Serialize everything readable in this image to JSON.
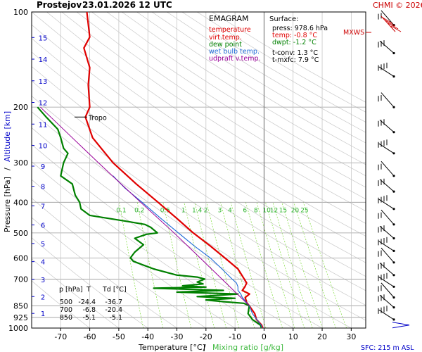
{
  "header": {
    "station": "Prostejov",
    "datetime": "23.01.2026 12 UTC",
    "credit": "CHMI © 2026"
  },
  "legend": {
    "title": "EMAGRAM",
    "entries": [
      {
        "label": "temperature",
        "color": "#e00000"
      },
      {
        "label": "virt.temp.",
        "color": "#e00000"
      },
      {
        "label": "dew point",
        "color": "#008000"
      },
      {
        "label": "wet bulb temp.",
        "color": "#1e6ad6"
      },
      {
        "label": "udpraft v.temp.",
        "color": "#990099"
      }
    ]
  },
  "surface": {
    "title": "Surface:",
    "lines": [
      {
        "label": "press:",
        "value": "978.6 hPa",
        "color": "#000000"
      },
      {
        "label": "temp:",
        "value": "-0.8 °C",
        "color": "#e00000"
      },
      {
        "label": "dwpt:",
        "value": "-1.2 °C",
        "color": "#008000"
      },
      {
        "label": "t-conv:",
        "value": "1.3 °C",
        "color": "#000000"
      },
      {
        "label": "t-mxfc:",
        "value": "7.9 °C",
        "color": "#000000"
      }
    ]
  },
  "mxws_label": "MXWS",
  "tropo_label": "Tropo",
  "table": {
    "headers": [
      "p [hPa]",
      "T",
      "Td [°C]"
    ],
    "rows": [
      [
        "500",
        "-24.4",
        "-36.7"
      ],
      [
        "700",
        "-6.8",
        "-20.4"
      ],
      [
        "850",
        "-5.1",
        "-5.1"
      ]
    ]
  },
  "footer": {
    "xlabel": "Temperature [°C]",
    "separator": "/",
    "mixing_label": "Mixing ratio [g/kg]",
    "sfc": "SFC: 215 m ASL"
  },
  "yaxis": {
    "pressure_label": "Pressure [hPa]",
    "separator": "/",
    "altitude_label": "Altitude [km]"
  },
  "colors": {
    "temperature": "#e00000",
    "dewpoint": "#008000",
    "wetbulb": "#1e6ad6",
    "parcel": "#990099",
    "mixing": "#7ddc3a",
    "altitude": "#0000c8",
    "grid": "#9a9a9a"
  },
  "chart_data": {
    "type": "line",
    "title": "EMAGRAM",
    "xlabel": "Temperature [°C]",
    "ylabel": "Pressure [hPa]",
    "xlim": [
      -80,
      35
    ],
    "ylim": [
      1000,
      100
    ],
    "x_ticks": [
      -70,
      -60,
      -50,
      -40,
      -30,
      -20,
      -10,
      0,
      10,
      20,
      30
    ],
    "pressure_ticks": [
      100,
      200,
      300,
      400,
      500,
      600,
      700,
      850,
      925,
      1000
    ],
    "altitude_ticks_km": [
      1,
      2,
      3,
      4,
      5,
      6,
      7,
      8,
      9,
      10,
      11,
      12,
      13,
      14,
      15
    ],
    "mixing_ratio_labels": [
      "0.1",
      "0.2",
      "0.5",
      "1",
      "1.4",
      "2",
      "3",
      "4",
      "6",
      "8",
      "10",
      "12",
      "15",
      "20",
      "25"
    ],
    "mixing_ratio_values": [
      0.1,
      0.2,
      0.5,
      1,
      1.4,
      2,
      3,
      4,
      6,
      8,
      10,
      12,
      15,
      20,
      25
    ],
    "tropopause_hPa": 215,
    "series": [
      {
        "name": "temperature",
        "points": [
          [
            1000,
            -0.5
          ],
          [
            978.6,
            -0.8
          ],
          [
            940,
            -2.6
          ],
          [
            900,
            -3.2
          ],
          [
            850,
            -5.1
          ],
          [
            830,
            -6.0
          ],
          [
            800,
            -6.5
          ],
          [
            780,
            -5.0
          ],
          [
            760,
            -7.5
          ],
          [
            740,
            -6.6
          ],
          [
            720,
            -6.0
          ],
          [
            700,
            -6.8
          ],
          [
            650,
            -9.0
          ],
          [
            600,
            -13.5
          ],
          [
            550,
            -18.5
          ],
          [
            500,
            -24.4
          ],
          [
            450,
            -30.0
          ],
          [
            400,
            -36.5
          ],
          [
            350,
            -44.0
          ],
          [
            300,
            -52.0
          ],
          [
            250,
            -59.0
          ],
          [
            215,
            -61.5
          ],
          [
            200,
            -60.0
          ],
          [
            170,
            -60.5
          ],
          [
            150,
            -60.0
          ],
          [
            130,
            -62.0
          ],
          [
            120,
            -60.0
          ],
          [
            100,
            -61.0
          ]
        ]
      },
      {
        "name": "dew point",
        "points": [
          [
            1000,
            -0.9
          ],
          [
            978.6,
            -1.2
          ],
          [
            940,
            -4.0
          ],
          [
            900,
            -5.5
          ],
          [
            850,
            -5.1
          ],
          [
            835,
            -7.0
          ],
          [
            825,
            -14.0
          ],
          [
            815,
            -20.0
          ],
          [
            805,
            -10.0
          ],
          [
            795,
            -23.0
          ],
          [
            780,
            -9.0
          ],
          [
            770,
            -30.0
          ],
          [
            760,
            -14.0
          ],
          [
            748,
            -38.0
          ],
          [
            742,
            -20.0
          ],
          [
            735,
            -28.0
          ],
          [
            725,
            -21.0
          ],
          [
            715,
            -23.0
          ],
          [
            700,
            -20.4
          ],
          [
            690,
            -23.0
          ],
          [
            680,
            -30.0
          ],
          [
            650,
            -38.0
          ],
          [
            615,
            -45.0
          ],
          [
            600,
            -46.0
          ],
          [
            575,
            -44.5
          ],
          [
            545,
            -41.5
          ],
          [
            520,
            -44.5
          ],
          [
            505,
            -40.5
          ],
          [
            500,
            -36.7
          ],
          [
            480,
            -39.0
          ],
          [
            470,
            -41.0
          ],
          [
            460,
            -47.0
          ],
          [
            440,
            -60.0
          ],
          [
            420,
            -63.0
          ],
          [
            400,
            -63.5
          ],
          [
            380,
            -65.0
          ],
          [
            350,
            -66.0
          ],
          [
            330,
            -70.0
          ],
          [
            300,
            -69.0
          ],
          [
            280,
            -67.5
          ],
          [
            270,
            -69.0
          ],
          [
            250,
            -70.0
          ],
          [
            235,
            -71.0
          ],
          [
            215,
            -75.0
          ],
          [
            200,
            -78.0
          ]
        ]
      },
      {
        "name": "wet bulb temp.",
        "points": [
          [
            1000,
            -0.7
          ],
          [
            978.6,
            -1.0
          ],
          [
            900,
            -4.0
          ],
          [
            850,
            -5.1
          ],
          [
            800,
            -7.5
          ],
          [
            780,
            -8.0
          ],
          [
            760,
            -9.0
          ],
          [
            740,
            -9.0
          ],
          [
            720,
            -9.5
          ],
          [
            700,
            -11.0
          ],
          [
            650,
            -14.5
          ],
          [
            600,
            -18.5
          ],
          [
            550,
            -24.0
          ],
          [
            500,
            -29.5
          ],
          [
            450,
            -35.5
          ],
          [
            400,
            -42.0
          ],
          [
            360,
            -48.0
          ],
          [
            330,
            -52.0
          ]
        ]
      },
      {
        "name": "udpraft v.temp.",
        "points": [
          [
            850,
            -5.1
          ],
          [
            800,
            -8.0
          ],
          [
            700,
            -14.5
          ],
          [
            600,
            -22.0
          ],
          [
            500,
            -31.0
          ],
          [
            400,
            -42.5
          ],
          [
            300,
            -57.0
          ],
          [
            250,
            -66.0
          ],
          [
            200,
            -77.0
          ]
        ]
      }
    ]
  }
}
